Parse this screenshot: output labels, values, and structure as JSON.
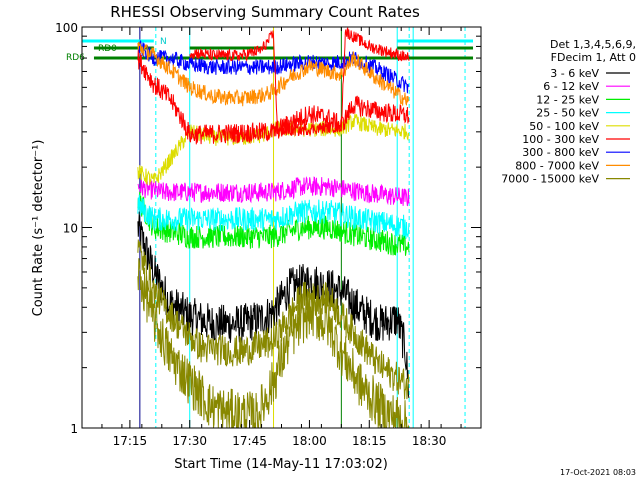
{
  "chart_data": {
    "type": "line",
    "title": "RHESSI Observing Summary Count Rates",
    "xlabel": "Start Time (14-May-11 17:03:02)",
    "ylabel": "Count Rate (s⁻¹ detector⁻¹)",
    "ylim": [
      1,
      100
    ],
    "yscale": "log",
    "xlim_minutes_since_start": [
      0,
      100
    ],
    "x_ticks": [
      {
        "minute": 12,
        "label": "17:15"
      },
      {
        "minute": 27,
        "label": "17:30"
      },
      {
        "minute": 42,
        "label": "17:45"
      },
      {
        "minute": 57,
        "label": "18:00"
      },
      {
        "minute": 72,
        "label": "18:15"
      },
      {
        "minute": 87,
        "label": "18:30"
      }
    ],
    "y_ticks": [
      {
        "value": 1,
        "label": "1"
      },
      {
        "value": 10,
        "label": "10"
      },
      {
        "value": 100,
        "label": "100"
      }
    ],
    "legend": {
      "placement": "right",
      "header": [
        "Det 1,3,4,5,6,9,",
        "FDecim 1, Att 0"
      ],
      "entries": [
        {
          "label": "3 - 6 keV",
          "color": "#000000"
        },
        {
          "label": "6 - 12 keV",
          "color": "#ff00ff"
        },
        {
          "label": "12 - 25 keV",
          "color": "#00ee00"
        },
        {
          "label": "25 - 50 keV",
          "color": "#00ffff"
        },
        {
          "label": "50 - 100 keV",
          "color": "#dddd00"
        },
        {
          "label": "100 - 300 keV",
          "color": "#ff0000"
        },
        {
          "label": "300 - 800 keV",
          "color": "#0000ff"
        },
        {
          "label": "800 - 7000 keV",
          "color": "#ff8c00"
        },
        {
          "label": "7000 - 15000 keV",
          "color": "#888800"
        }
      ]
    },
    "flags": [
      {
        "label": "N",
        "color": "#00ffff",
        "segments": [
          [
            0,
            18
          ]
        ]
      },
      {
        "label": "RD0",
        "color": "#008000",
        "segments": [
          [
            3,
            18
          ],
          [
            27,
            48
          ],
          [
            79,
            98
          ]
        ]
      },
      {
        "label": "RD6",
        "color": "#008000",
        "segments": [
          [
            3,
            98
          ]
        ]
      }
    ],
    "cyan_flag_segments": [
      [
        79,
        98
      ]
    ],
    "vertical_markers": [
      {
        "minute": 14.5,
        "color": "#00008b",
        "style": "solid"
      },
      {
        "minute": 18.5,
        "color": "#00ffff",
        "style": "dashed"
      },
      {
        "minute": 27,
        "color": "#00ffff",
        "style": "solid"
      },
      {
        "minute": 48,
        "color": "#dddd00",
        "style": "solid"
      },
      {
        "minute": 65,
        "color": "#008000",
        "style": "solid"
      },
      {
        "minute": 79,
        "color": "#00ffff",
        "style": "solid"
      },
      {
        "minute": 82,
        "color": "#00ffff",
        "style": "dashed"
      },
      {
        "minute": 83,
        "color": "#00ffff",
        "style": "solid"
      },
      {
        "minute": 96,
        "color": "#00ffff",
        "style": "dashed"
      }
    ],
    "data_span_minutes": [
      14,
      82
    ],
    "series": [
      {
        "name": "3 - 6 keV",
        "color": "#000000",
        "noise": 0.1,
        "points": [
          [
            14,
            10
          ],
          [
            18,
            6
          ],
          [
            22,
            4.2
          ],
          [
            27,
            3.6
          ],
          [
            33,
            3.3
          ],
          [
            40,
            3.3
          ],
          [
            45,
            3.5
          ],
          [
            48,
            3.8
          ],
          [
            52,
            5
          ],
          [
            57,
            5.4
          ],
          [
            62,
            5
          ],
          [
            65,
            4.8
          ],
          [
            70,
            3.8
          ],
          [
            75,
            3.3
          ],
          [
            79,
            3.5
          ],
          [
            81,
            2.5
          ],
          [
            82,
            1.5
          ]
        ]
      },
      {
        "name": "6 - 12 keV",
        "color": "#ff00ff",
        "noise": 0.05,
        "points": [
          [
            14,
            16
          ],
          [
            20,
            15
          ],
          [
            27,
            15
          ],
          [
            35,
            15
          ],
          [
            48,
            15
          ],
          [
            55,
            16
          ],
          [
            62,
            16
          ],
          [
            70,
            15
          ],
          [
            82,
            14
          ]
        ]
      },
      {
        "name": "12 - 25 keV",
        "color": "#00ee00",
        "noise": 0.06,
        "points": [
          [
            14,
            14
          ],
          [
            18,
            10
          ],
          [
            27,
            9
          ],
          [
            35,
            9
          ],
          [
            48,
            9
          ],
          [
            55,
            10
          ],
          [
            62,
            10
          ],
          [
            70,
            9
          ],
          [
            82,
            8
          ]
        ]
      },
      {
        "name": "25 - 50 keV",
        "color": "#00ffff",
        "noise": 0.06,
        "points": [
          [
            14,
            13
          ],
          [
            18,
            11
          ],
          [
            27,
            11
          ],
          [
            40,
            11
          ],
          [
            48,
            11
          ],
          [
            55,
            12
          ],
          [
            62,
            12
          ],
          [
            70,
            11
          ],
          [
            82,
            10
          ]
        ]
      },
      {
        "name": "50 - 100 keV",
        "color": "#dddd00",
        "noise": 0.04,
        "points": [
          [
            14,
            19
          ],
          [
            16,
            18
          ],
          [
            18,
            17
          ],
          [
            20,
            19
          ],
          [
            27,
            30
          ],
          [
            33,
            28
          ],
          [
            40,
            28
          ],
          [
            46,
            29
          ],
          [
            48,
            31
          ],
          [
            65,
            31
          ],
          [
            68,
            34
          ],
          [
            74,
            31
          ],
          [
            82,
            30
          ]
        ]
      },
      {
        "name": "100 - 300 keV",
        "color": "#ff0000",
        "noise": 0.05,
        "points": [
          [
            14,
            70
          ],
          [
            18,
            52
          ],
          [
            22,
            44
          ],
          [
            25,
            35
          ],
          [
            27,
            29
          ],
          [
            48,
            30
          ],
          [
            52,
            33
          ],
          [
            57,
            37
          ],
          [
            62,
            35
          ],
          [
            65,
            32
          ],
          [
            68,
            41
          ],
          [
            74,
            38
          ],
          [
            82,
            36
          ]
        ]
      },
      {
        "name": "300 - 800 keV",
        "color": "#0000ff",
        "noise": 0.04,
        "points": [
          [
            14,
            80
          ],
          [
            18,
            70
          ],
          [
            22,
            70
          ],
          [
            27,
            65
          ],
          [
            33,
            63
          ],
          [
            40,
            63
          ],
          [
            48,
            63
          ],
          [
            52,
            65
          ],
          [
            57,
            67
          ],
          [
            62,
            66
          ],
          [
            65,
            67
          ],
          [
            68,
            70
          ],
          [
            74,
            62
          ],
          [
            82,
            50
          ]
        ]
      },
      {
        "name": "800 - 7000 keV",
        "color": "#ff8c00",
        "noise": 0.04,
        "points": [
          [
            14,
            80
          ],
          [
            18,
            72
          ],
          [
            22,
            62
          ],
          [
            27,
            50
          ],
          [
            33,
            45
          ],
          [
            40,
            44
          ],
          [
            46,
            46
          ],
          [
            48,
            48
          ],
          [
            52,
            56
          ],
          [
            57,
            64
          ],
          [
            62,
            60
          ],
          [
            65,
            58
          ],
          [
            68,
            70
          ],
          [
            74,
            55
          ],
          [
            82,
            42
          ]
        ]
      },
      {
        "name": "7000 - 15000 keV",
        "color": "#888800",
        "noise": 0.12,
        "points": [
          [
            14,
            6
          ],
          [
            18,
            3.5
          ],
          [
            22,
            2.3
          ],
          [
            27,
            1.7
          ],
          [
            32,
            1.3
          ],
          [
            36,
            1.2
          ],
          [
            44,
            1.15
          ],
          [
            48,
            1.7
          ],
          [
            52,
            2.8
          ],
          [
            57,
            3.8
          ],
          [
            62,
            3.2
          ],
          [
            65,
            2.4
          ],
          [
            70,
            1.6
          ],
          [
            76,
            1.2
          ],
          [
            80,
            1.1
          ],
          [
            82,
            1.0
          ]
        ]
      },
      {
        "name": "7000 - 15000 keV (fluctuation band)",
        "color": "#888800",
        "noise": 0.08,
        "points": [
          [
            14,
            8
          ],
          [
            18,
            4.8
          ],
          [
            24,
            3.3
          ],
          [
            30,
            2.5
          ],
          [
            40,
            2.4
          ],
          [
            48,
            2.7
          ],
          [
            55,
            4.5
          ],
          [
            62,
            4.4
          ],
          [
            68,
            3
          ],
          [
            74,
            2.1
          ],
          [
            82,
            1.6
          ]
        ]
      },
      {
        "name": "100 - 300 keV (upper band)",
        "color": "#ff0000",
        "noise": 0.03,
        "points": [
          [
            27,
            75
          ],
          [
            33,
            72
          ],
          [
            40,
            72
          ],
          [
            45,
            77
          ],
          [
            48,
            92
          ],
          [
            49,
            30
          ],
          [
            65,
            32
          ],
          [
            66,
            95
          ],
          [
            72,
            80
          ],
          [
            82,
            70
          ]
        ]
      }
    ],
    "footer_timestamp": "17-Oct-2021 08:03"
  }
}
